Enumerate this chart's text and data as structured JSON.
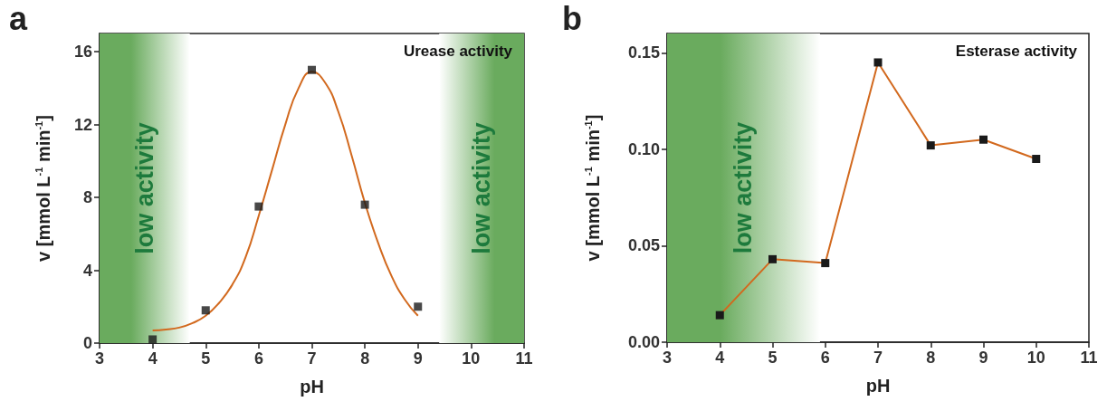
{
  "chart_data": [
    {
      "type": "line",
      "title": "Urease activity",
      "xlabel": "pH",
      "ylabel": "v [mmol L$^{-1}$ min$^{-1}$]",
      "annotations": [
        "a"
      ],
      "xlim": [
        3,
        11
      ],
      "xticks": [
        3,
        4,
        5,
        6,
        7,
        8,
        9,
        10,
        11
      ],
      "ylim": [
        0,
        17
      ],
      "yticks": [
        0,
        4,
        8,
        12,
        16
      ],
      "grid": false,
      "bands": [
        {
          "axis": "x",
          "from": 3,
          "to": 4.7,
          "label": "low activity",
          "color": "#6aab5e"
        },
        {
          "axis": "x",
          "from": 9.4,
          "to": 11,
          "label": "low activity",
          "color": "#6aab5e"
        }
      ],
      "series": [
        {
          "type": "line",
          "marker": "none",
          "color": "#d2691e",
          "x": [
            4,
            4.25,
            4.5,
            4.75,
            5,
            5.25,
            5.5,
            5.75,
            6,
            6.25,
            6.5,
            6.75,
            7,
            7.25,
            7.5,
            7.75,
            8,
            8.25,
            8.5,
            8.75,
            9
          ],
          "values": [
            0.7,
            0.75,
            0.85,
            1.1,
            1.5,
            2.2,
            3.2,
            4.7,
            7.0,
            9.5,
            12.0,
            14.0,
            14.9,
            14.3,
            12.7,
            10.3,
            7.7,
            5.5,
            3.7,
            2.4,
            1.5
          ]
        },
        {
          "type": "scatter",
          "marker": "square",
          "color": "#1a1a1a",
          "x": [
            4,
            5,
            6,
            7,
            8,
            9
          ],
          "values": [
            0.2,
            1.8,
            7.5,
            15.0,
            7.6,
            2.0
          ]
        }
      ]
    },
    {
      "type": "line",
      "title": "Esterase activity",
      "xlabel": "pH",
      "ylabel": "v [mmol L$^{-1}$ min$^{-1}$]",
      "annotations": [
        "b"
      ],
      "xlim": [
        3,
        11
      ],
      "xticks": [
        3,
        4,
        5,
        6,
        7,
        8,
        9,
        10,
        11
      ],
      "ylim": [
        0,
        0.16
      ],
      "yticks": [
        {
          "value": 0,
          "label": "0.00"
        },
        {
          "value": 0.05,
          "label": "0.05"
        },
        {
          "value": 0.1,
          "label": "0.10"
        },
        {
          "value": 0.15,
          "label": "0.15"
        }
      ],
      "grid": false,
      "bands": [
        {
          "axis": "x",
          "from": 3,
          "to": 5.9,
          "label": "low activity",
          "color": "#6aab5e"
        }
      ],
      "series": [
        {
          "type": "line",
          "marker": "square",
          "color": "#d2691e",
          "colors": [
            "#1a1a1a",
            "#1a1a1a",
            "#1a1a1a",
            "#1a1a1a",
            "#1a1a1a",
            "#1a1a1a",
            "#1a1a1a"
          ],
          "x": [
            4,
            5,
            6,
            7,
            8,
            9,
            10
          ],
          "values": [
            0.014,
            0.043,
            0.041,
            0.145,
            0.102,
            0.105,
            0.095
          ]
        }
      ]
    }
  ]
}
